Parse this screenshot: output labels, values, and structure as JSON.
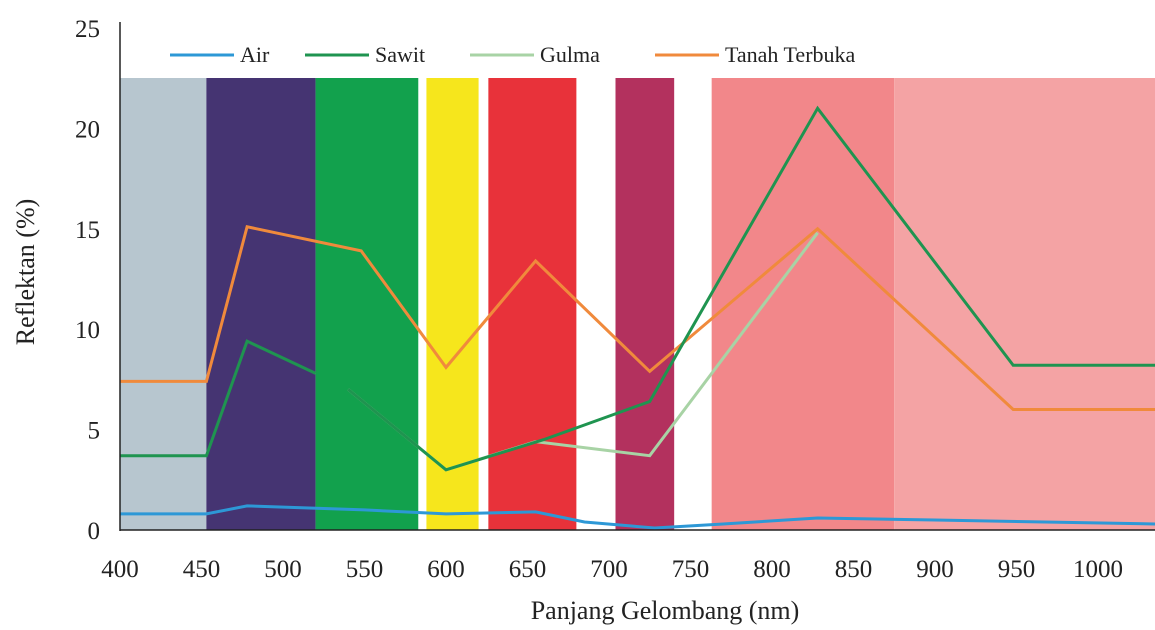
{
  "chart_data": {
    "type": "line",
    "xlabel": "Panjang Gelombang (nm)",
    "ylabel": "Reflektan (%)",
    "xlim": [
      400,
      1035
    ],
    "ylim": [
      0,
      25
    ],
    "x_ticks": [
      400,
      450,
      500,
      550,
      600,
      650,
      700,
      750,
      800,
      850,
      900,
      950,
      1000
    ],
    "y_ticks": [
      0,
      5,
      10,
      15,
      20,
      25
    ],
    "grid": false,
    "legend_position": "top",
    "bands": [
      {
        "from": 400,
        "to": 453,
        "color": "#b7c6cf"
      },
      {
        "from": 453,
        "to": 520,
        "color": "#453472"
      },
      {
        "from": 520,
        "to": 583,
        "color": "#12a14d"
      },
      {
        "from": 588,
        "to": 620,
        "color": "#f6e61c"
      },
      {
        "from": 626,
        "to": 680,
        "color": "#e8323a"
      },
      {
        "from": 704,
        "to": 740,
        "color": "#b3315e"
      },
      {
        "from": 763,
        "to": 875,
        "color": "#f2878a"
      },
      {
        "from": 875,
        "to": 1035,
        "color": "#f4a3a4"
      }
    ],
    "series": [
      {
        "name": "Air",
        "color": "#2d98d6",
        "points": [
          [
            400,
            0.8
          ],
          [
            453,
            0.8
          ],
          [
            478,
            1.2
          ],
          [
            550,
            1.0
          ],
          [
            600,
            0.8
          ],
          [
            655,
            0.9
          ],
          [
            685,
            0.4
          ],
          [
            728,
            0.1
          ],
          [
            770,
            0.3
          ],
          [
            828,
            0.6
          ],
          [
            900,
            0.5
          ],
          [
            1035,
            0.3
          ]
        ]
      },
      {
        "name": "Sawit",
        "color": "#1f9450",
        "points": [
          [
            400,
            3.7
          ],
          [
            453,
            3.7
          ],
          [
            478,
            9.4
          ],
          [
            520,
            7.8
          ],
          [
            522,
            null
          ],
          [
            540,
            null
          ],
          [
            540,
            7.0
          ],
          [
            600,
            3.0
          ],
          [
            660,
            4.5
          ],
          [
            725,
            6.4
          ],
          [
            828,
            21.0
          ],
          [
            948,
            8.2
          ],
          [
            1035,
            8.2
          ]
        ]
      },
      {
        "name": "Gulma",
        "color": "#a8d3a5",
        "points": [
          [
            540,
            7.0
          ],
          [
            600,
            3.0
          ],
          [
            655,
            4.4
          ],
          [
            725,
            3.7
          ],
          [
            828,
            14.8
          ]
        ]
      },
      {
        "name": "Tanah Terbuka",
        "color": "#f08a3c",
        "points": [
          [
            400,
            7.4
          ],
          [
            453,
            7.4
          ],
          [
            478,
            15.1
          ],
          [
            548,
            13.9
          ],
          [
            600,
            8.1
          ],
          [
            655,
            13.4
          ],
          [
            725,
            7.9
          ],
          [
            828,
            15.0
          ],
          [
            948,
            6.0
          ],
          [
            1035,
            6.0
          ]
        ]
      }
    ]
  }
}
